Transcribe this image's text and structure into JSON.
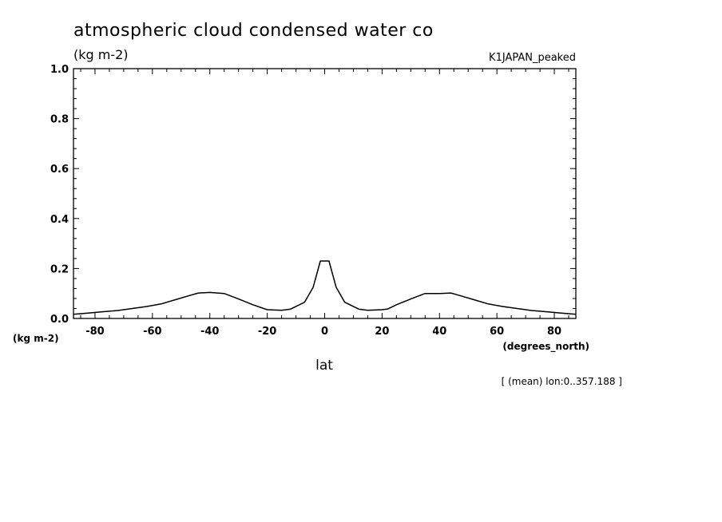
{
  "chart_data": {
    "type": "line",
    "title": "atmospheric cloud condensed water co",
    "units_label": "(kg m-2)",
    "run_name": "K1JAPAN_peaked",
    "ylabel_units": "(kg m-2)",
    "xlabel": "lat",
    "xlabel_units": "(degrees_north)",
    "footnote": "[ (mean) lon:0..357.188 ]",
    "xlim": [
      -87.5,
      87.5
    ],
    "ylim": [
      0.0,
      1.0
    ],
    "x_ticks": [
      -80,
      -60,
      -40,
      -20,
      0,
      20,
      40,
      60,
      80
    ],
    "x_tick_labels": [
      "-80",
      "-60",
      "-40",
      "-20",
      "0",
      "20",
      "40",
      "60",
      "80"
    ],
    "y_ticks": [
      0.0,
      0.2,
      0.4,
      0.6,
      0.8,
      1.0
    ],
    "y_tick_labels": [
      "0.0",
      "0.2",
      "0.4",
      "0.6",
      "0.8",
      "1.0"
    ],
    "series": [
      {
        "name": "K1JAPAN_peaked",
        "color": "#000000",
        "x": [
          -87.5,
          -82,
          -77,
          -72,
          -67,
          -62,
          -57,
          -52,
          -47,
          -44,
          -40,
          -35,
          -30,
          -25,
          -20,
          -15,
          -12,
          -7,
          -4,
          -1.5,
          1.5,
          4,
          7,
          12,
          15,
          20,
          22,
          25,
          30,
          35,
          40,
          44,
          47,
          52,
          57,
          62,
          67,
          72,
          77,
          82,
          87.5
        ],
        "y": [
          0.017,
          0.022,
          0.027,
          0.032,
          0.04,
          0.048,
          0.058,
          0.075,
          0.092,
          0.102,
          0.104,
          0.1,
          0.078,
          0.055,
          0.035,
          0.033,
          0.037,
          0.065,
          0.125,
          0.23,
          0.23,
          0.125,
          0.065,
          0.037,
          0.033,
          0.035,
          0.038,
          0.055,
          0.078,
          0.1,
          0.1,
          0.102,
          0.092,
          0.075,
          0.058,
          0.048,
          0.04,
          0.032,
          0.027,
          0.022,
          0.017
        ]
      }
    ]
  }
}
